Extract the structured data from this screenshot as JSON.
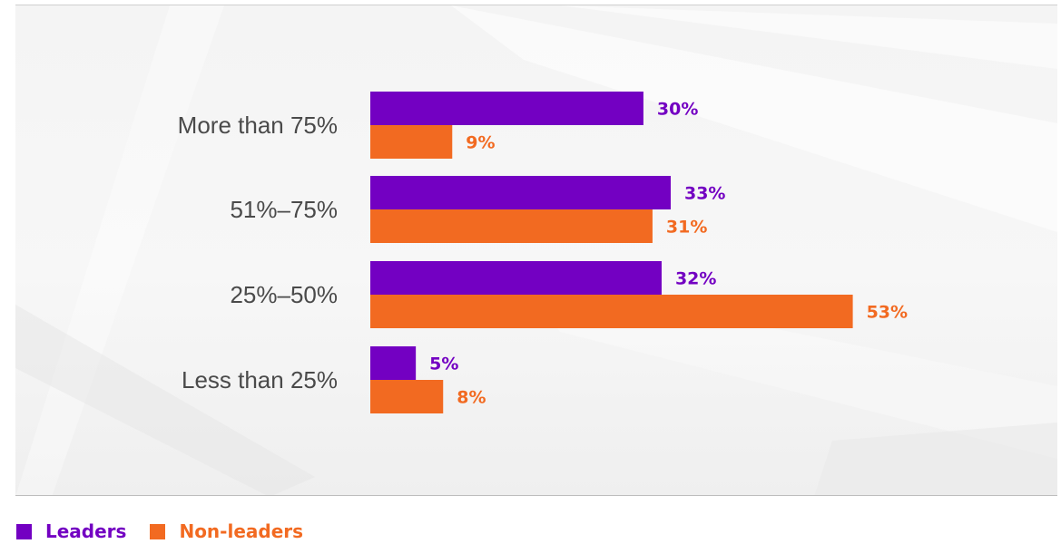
{
  "colors": {
    "leaders": "#7300c2",
    "non_leaders": "#f26a21",
    "category_text": "#4a4a4a"
  },
  "chart_data": {
    "type": "bar",
    "orientation": "horizontal",
    "categories": [
      "More than 75%",
      "51%–75%",
      "25%–50%",
      "Less than 25%"
    ],
    "series": [
      {
        "name": "Leaders",
        "values": [
          30,
          33,
          32,
          5
        ],
        "labels": [
          "30%",
          "33%",
          "32%",
          "5%"
        ]
      },
      {
        "name": "Non-leaders",
        "values": [
          9,
          31,
          53,
          8
        ],
        "labels": [
          "9%",
          "31%",
          "53%",
          "8%"
        ]
      }
    ],
    "xlim": [
      0,
      100
    ],
    "grid": false,
    "legend_position": "bottom-left"
  },
  "legend": {
    "leaders_label": "Leaders",
    "non_leaders_label": "Non-leaders"
  }
}
